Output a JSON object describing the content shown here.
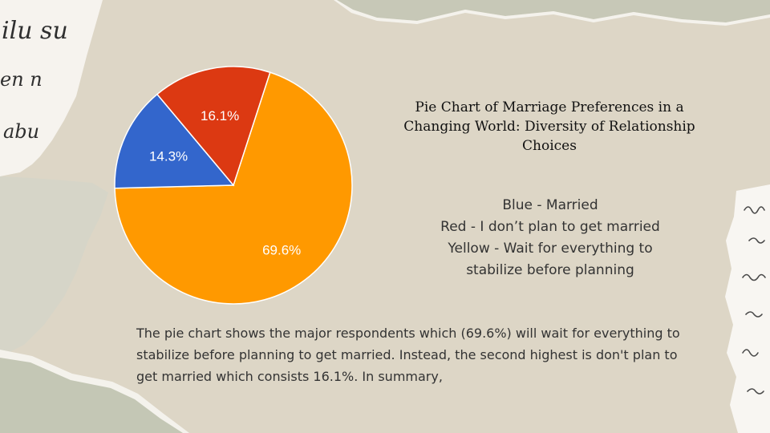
{
  "chart_data": {
    "type": "pie",
    "title": "Pie Chart of Marriage Preferences in a Changing World: Diversity of Relationship Choices",
    "slices": [
      {
        "label": "69.6%",
        "value": 69.6,
        "color": "#ff9900"
      },
      {
        "label": "14.3%",
        "value": 14.3,
        "color": "#3366cc"
      },
      {
        "label": "16.1%",
        "value": 16.1,
        "color": "#dc3912"
      }
    ]
  },
  "legend": {
    "items": [
      "Blue - Married",
      "Red - I don’t plan to get married",
      "Yellow - Wait for everything to",
      "stabilize before planning"
    ]
  },
  "summary": "The pie chart shows the major respondents which (69.6%) will wait for everything to stabilize before planning  to get married. Instead, the second highest is don't plan to get married which consists 16.1%. In summary,",
  "background": {
    "handwriting": [
      "ilu su",
      "en n",
      "abu"
    ]
  }
}
